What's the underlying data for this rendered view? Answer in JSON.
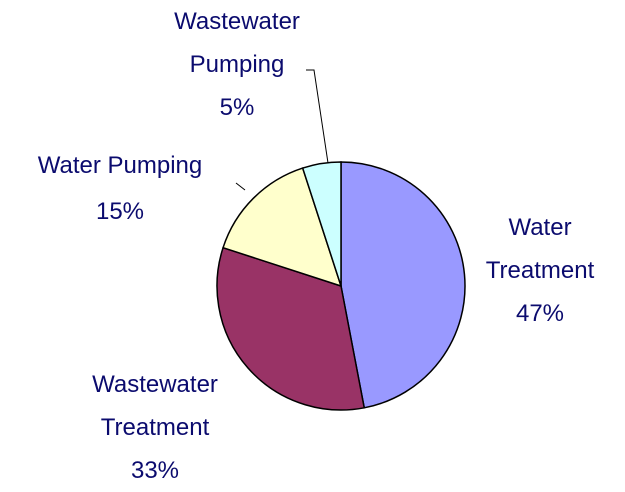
{
  "chart_data": {
    "type": "pie",
    "categories": [
      "Water Treatment",
      "Wastewater Treatment",
      "Water Pumping",
      "Wastewater Pumping"
    ],
    "values": [
      47,
      33,
      15,
      5
    ],
    "value_labels": [
      "47%",
      "33%",
      "15%",
      "5%"
    ],
    "colors": [
      "#9999ff",
      "#993366",
      "#ffffcc",
      "#ccffff"
    ]
  }
}
